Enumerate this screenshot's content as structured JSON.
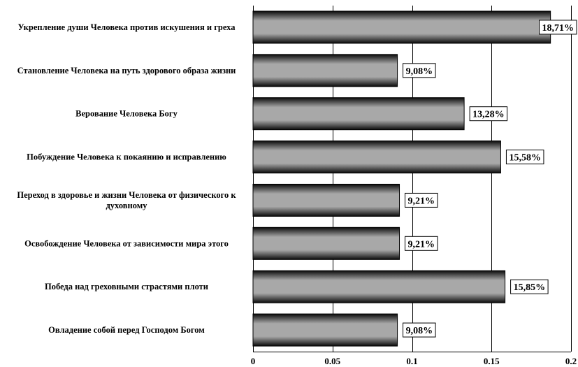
{
  "chart_data": {
    "type": "bar",
    "orientation": "horizontal",
    "title": "",
    "xlabel": "",
    "ylabel": "",
    "categories": [
      "Укрепление души Человека против искушения и греха",
      "Становление Человека на путь здорового образа жизни",
      "Верование Человека Богу",
      "Побуждение Человека к покаянию и исправлению",
      "Переход в здоровье и жизни Человека от физического к духовному",
      "Освобождение Человека от зависимости мира этого",
      "Победа над греховными страстями плоти",
      "Овладение собой перед Господом Богом"
    ],
    "category_lines": [
      [
        "Укрепление души Человека против искушения и греха"
      ],
      [
        "Становление Человека на путь здорового образа жизни"
      ],
      [
        "Верование Человека Богу"
      ],
      [
        "Побуждение Человека к покаянию и исправлению"
      ],
      [
        "Переход в здоровье и жизни Человека от физического к",
        "духовному"
      ],
      [
        "Освобождение Человека от зависимости мира этого"
      ],
      [
        "Победа над греховными страстями плоти"
      ],
      [
        "Овладение собой перед Господом Богом"
      ]
    ],
    "values": [
      0.1871,
      0.0908,
      0.1328,
      0.1558,
      0.0921,
      0.0921,
      0.1585,
      0.0908
    ],
    "data_labels": [
      "18,71%",
      "9,08%",
      "13,28%",
      "15,58%",
      "9,21%",
      "9,21%",
      "15,85%",
      "9,08%"
    ],
    "xlim": [
      0,
      0.2
    ],
    "xticks": [
      0,
      0.05,
      0.1,
      0.15,
      0.2
    ],
    "xtick_labels": [
      "0",
      "0.05",
      "0.1",
      "0.15",
      "0.2"
    ],
    "grid": "vertical",
    "legend": "none",
    "colors": {
      "bar_fill": "#a6a6a6",
      "bar_edge": "#000000",
      "grid": "#000000"
    }
  }
}
